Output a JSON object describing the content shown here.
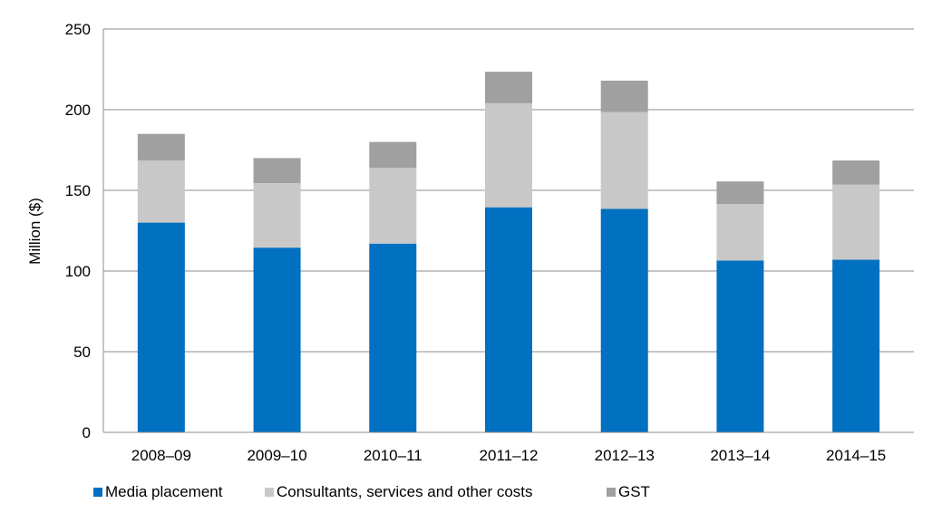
{
  "chart_data": {
    "type": "bar",
    "stacked": true,
    "title": "",
    "xlabel": "",
    "ylabel": "Million ($)",
    "ylim": [
      0,
      250
    ],
    "yticks": [
      0,
      50,
      100,
      150,
      200,
      250
    ],
    "grid": true,
    "legend_position": "bottom-left",
    "categories": [
      "2008–09",
      "2009–10",
      "2010–11",
      "2011–12",
      "2012–13",
      "2013–14",
      "2014–15"
    ],
    "series": [
      {
        "name": "Media placement",
        "color": "#0070c0",
        "values": [
          130,
          114.5,
          117,
          139.5,
          138.5,
          106.5,
          107
        ]
      },
      {
        "name": "Consultants, services and other costs",
        "color": "#c8c8c8",
        "values": [
          38.5,
          40,
          47,
          64.5,
          60,
          35,
          46.5
        ]
      },
      {
        "name": "GST",
        "color": "#a0a0a0",
        "values": [
          16.5,
          15.5,
          16,
          19.5,
          19.5,
          14,
          15
        ]
      }
    ]
  }
}
